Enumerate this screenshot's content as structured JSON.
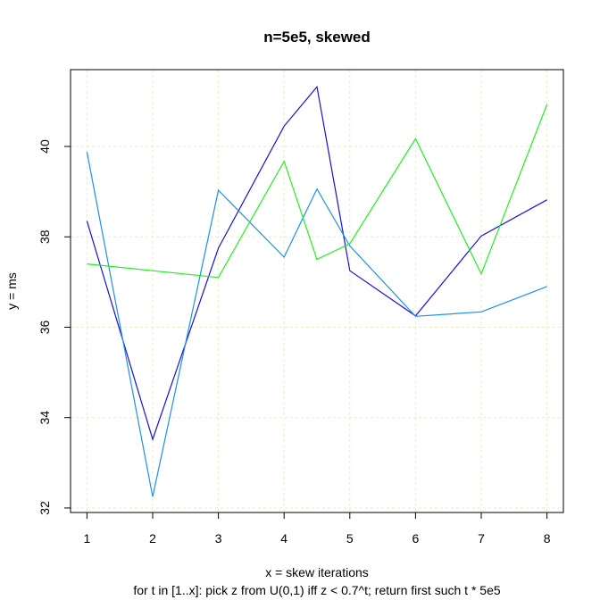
{
  "chart_data": {
    "type": "line",
    "title": "n=5e5, skewed",
    "xlabel": "x = skew iterations",
    "xlabel_sub": "for t in [1..x]: pick z from U(0,1) iff z < 0.7^t; return first such t * 5e5",
    "ylabel": "y = ms",
    "xlim": [
      0.75,
      8.25
    ],
    "ylim": [
      31.9,
      41.7
    ],
    "x_ticks": [
      1,
      2,
      3,
      4,
      5,
      6,
      7,
      8
    ],
    "y_ticks": [
      32,
      34,
      36,
      38,
      40
    ],
    "grid": true,
    "grid_color": "#e8ecc8",
    "series": [
      {
        "color": "#1a12cc",
        "x": [
          1,
          2,
          3,
          4,
          4.5,
          5,
          6,
          7,
          8
        ],
        "values": [
          38.35,
          33.52,
          37.75,
          40.45,
          41.32,
          37.25,
          36.25,
          38.02,
          38.82
        ]
      },
      {
        "color": "#1e8fe8",
        "x": [
          1,
          2,
          3,
          4,
          4.5,
          5,
          6,
          7,
          8
        ],
        "values": [
          39.88,
          32.25,
          39.03,
          37.55,
          39.06,
          37.8,
          36.24,
          36.34,
          36.9
        ]
      },
      {
        "color": "#22ee22",
        "x": [
          1,
          3,
          4,
          4.5,
          5,
          6,
          7,
          8
        ],
        "values": [
          37.4,
          37.1,
          39.67,
          37.5,
          37.85,
          40.17,
          37.18,
          40.93
        ]
      }
    ]
  }
}
